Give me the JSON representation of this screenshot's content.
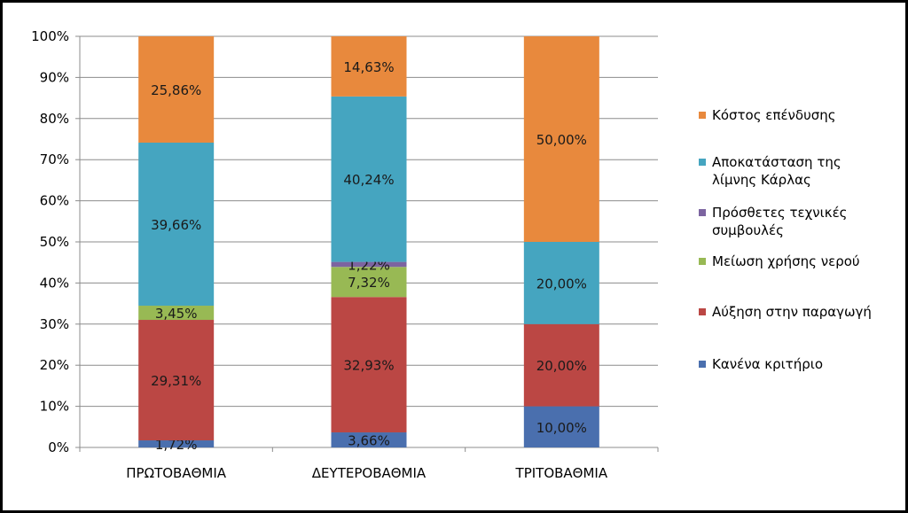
{
  "chart_data": {
    "type": "bar",
    "stacked": true,
    "percent_stacked": true,
    "categories": [
      "ΠΡΩΤΟΒΑΘΜΙΑ",
      "ΔΕΥΤΕΡΟΒΑΘΜΙΑ",
      "ΤΡΙΤΟΒΑΘΜΙΑ"
    ],
    "ylim": [
      0,
      100
    ],
    "y_ticks": [
      "0%",
      "10%",
      "20%",
      "30%",
      "40%",
      "50%",
      "60%",
      "70%",
      "80%",
      "90%",
      "100%"
    ],
    "grid": true,
    "legend_position": "right",
    "series": [
      {
        "name": "Κανένα κριτήριο",
        "color": "#4a6fae",
        "values": [
          1.72,
          3.66,
          10.0
        ],
        "labels": [
          "1,72%",
          "3,66%",
          "10,00%"
        ]
      },
      {
        "name": "Αύξηση στην παραγωγή",
        "color": "#bb4744",
        "values": [
          29.31,
          32.93,
          20.0
        ],
        "labels": [
          "29,31%",
          "32,93%",
          "20,00%"
        ]
      },
      {
        "name": "Μείωση χρήσης νερού",
        "color": "#98b954",
        "values": [
          3.45,
          7.32,
          0
        ],
        "labels": [
          "3,45%",
          "7,32%",
          ""
        ]
      },
      {
        "name": "Πρόσθετες τεχνικές συμβουλές",
        "color": "#7c64a0",
        "values": [
          0,
          1.22,
          0
        ],
        "labels": [
          "",
          "1,22%",
          ""
        ]
      },
      {
        "name": "Αποκατάσταση της λίμνης Κάρλας",
        "color": "#45a5c0",
        "values": [
          39.66,
          40.24,
          20.0
        ],
        "labels": [
          "39,66%",
          "40,24%",
          "20,00%"
        ]
      },
      {
        "name": "Κόστος επένδυσης",
        "color": "#e8893d",
        "values": [
          25.86,
          14.63,
          50.0
        ],
        "labels": [
          "25,86%",
          "14,63%",
          "50,00%"
        ]
      }
    ],
    "legend_lines": {
      "Κανένα κριτήριο": [
        "Κανένα κριτήριο"
      ],
      "Αύξηση στην παραγωγή": [
        "Αύξηση στην παραγωγή"
      ],
      "Μείωση χρήσης νερού": [
        "Μείωση χρήσης νερού"
      ],
      "Πρόσθετες τεχνικές συμβουλές": [
        "Πρόσθετες τεχνικές",
        "συμβουλές"
      ],
      "Αποκατάσταση της λίμνης Κάρλας": [
        "Αποκατάσταση της",
        "λίμνης Κάρλας"
      ],
      "Κόστος επένδυσης": [
        "Κόστος επένδυσης"
      ]
    }
  }
}
